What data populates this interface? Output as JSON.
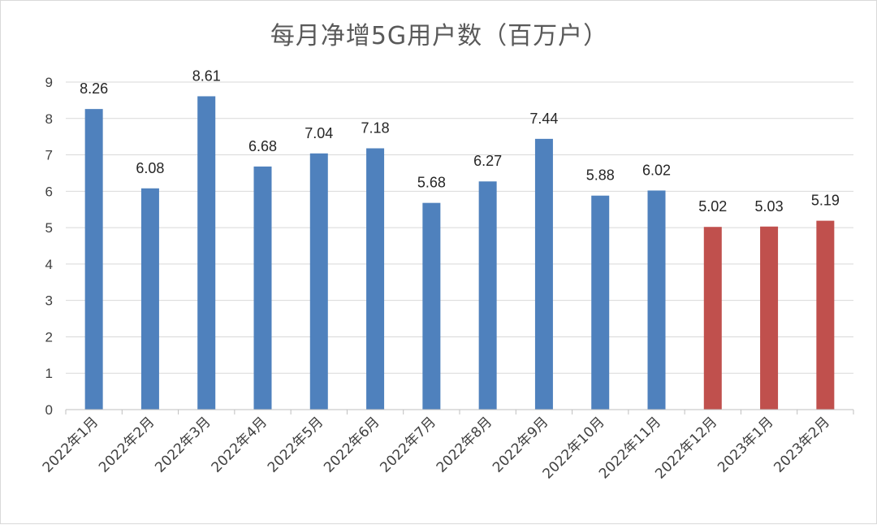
{
  "chart_data": {
    "type": "bar",
    "title": "每月净增5G用户数（百万户）",
    "xlabel": "",
    "ylabel": "",
    "ylim": [
      0,
      9
    ],
    "yticks": [
      0,
      1,
      2,
      3,
      4,
      5,
      6,
      7,
      8,
      9
    ],
    "grid": true,
    "legend": "none",
    "categories": [
      "2022年1月",
      "2022年2月",
      "2022年3月",
      "2022年4月",
      "2022年5月",
      "2022年6月",
      "2022年7月",
      "2022年8月",
      "2022年9月",
      "2022年10月",
      "2022年11月",
      "2022年12月",
      "2023年1月",
      "2023年2月"
    ],
    "values": [
      8.26,
      6.08,
      8.61,
      6.68,
      7.04,
      7.18,
      5.68,
      6.27,
      7.44,
      5.88,
      6.02,
      5.02,
      5.03,
      5.19
    ],
    "value_labels": [
      "8.26",
      "6.08",
      "8.61",
      "6.68",
      "7.04",
      "7.18",
      "5.68",
      "6.27",
      "7.44",
      "5.88",
      "6.02",
      "5.02",
      "5.03",
      "5.19"
    ],
    "bar_colors": [
      "#4f81bd",
      "#4f81bd",
      "#4f81bd",
      "#4f81bd",
      "#4f81bd",
      "#4f81bd",
      "#4f81bd",
      "#4f81bd",
      "#4f81bd",
      "#4f81bd",
      "#4f81bd",
      "#c0504d",
      "#c0504d",
      "#c0504d"
    ],
    "colors": {
      "grid": "#d9d9d9",
      "axis": "#bfbfbf"
    }
  }
}
